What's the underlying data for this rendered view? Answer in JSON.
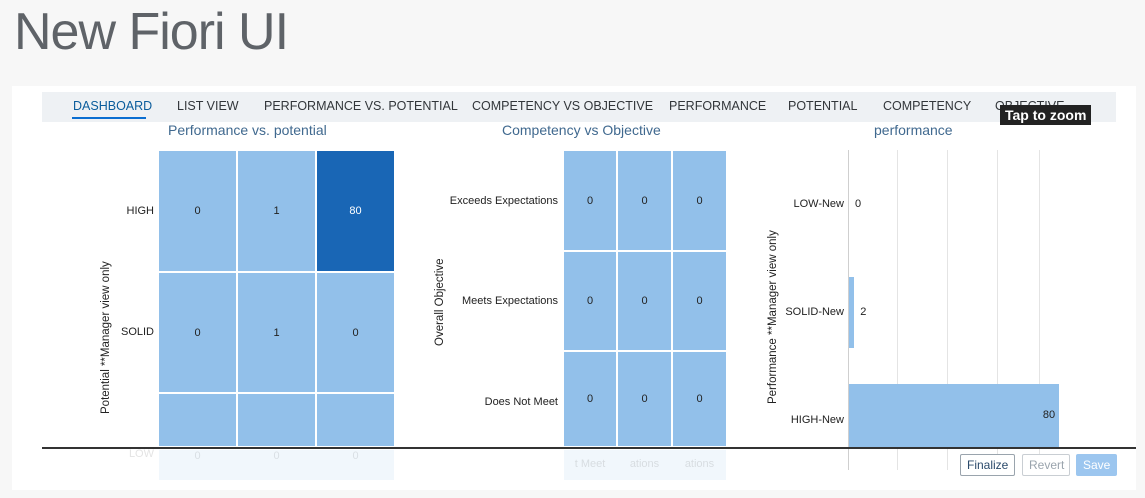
{
  "page": {
    "title": "New Fiori UI"
  },
  "tabs": [
    {
      "label": "DASHBOARD",
      "active": true
    },
    {
      "label": "LIST VIEW"
    },
    {
      "label": "PERFORMANCE VS. POTENTIAL"
    },
    {
      "label": "COMPETENCY VS OBJECTIVE"
    },
    {
      "label": "PERFORMANCE"
    },
    {
      "label": "POTENTIAL"
    },
    {
      "label": "COMPETENCY"
    },
    {
      "label": "OBJECTIVE"
    }
  ],
  "zoom_hint": "Tap to zoom",
  "charts": {
    "perf_potential": {
      "title": "Performance vs. potential",
      "ylabel": "Potential **Manager view only",
      "rows": [
        {
          "label": "HIGH",
          "values": [
            "0",
            "1",
            "80"
          ]
        },
        {
          "label": "SOLID",
          "values": [
            "0",
            "1",
            "0"
          ]
        },
        {
          "label": "LOW",
          "values": [
            "0",
            "0",
            "0"
          ]
        }
      ]
    },
    "comp_obj": {
      "title": "Competency vs Objective",
      "ylabel": "Overall Objective",
      "rows": [
        {
          "label": "Exceeds Expectations",
          "values": [
            "0",
            "0",
            "0"
          ]
        },
        {
          "label": "Meets Expectations",
          "values": [
            "0",
            "0",
            "0"
          ]
        },
        {
          "label": "Does Not Meet",
          "values": [
            "0",
            "0",
            "0"
          ]
        }
      ],
      "xticks": [
        "t Meet",
        "ations",
        "ations"
      ]
    },
    "performance": {
      "title": "performance",
      "ylabel": "Performance **Manager view only",
      "bars": [
        {
          "label": "LOW-New",
          "value": "0"
        },
        {
          "label": "SOLID-New",
          "value": "2"
        },
        {
          "label": "HIGH-New",
          "value": "80"
        }
      ]
    }
  },
  "chart_data": [
    {
      "type": "heatmap",
      "title": "Performance vs. potential",
      "ylabel": "Potential **Manager view only",
      "rows": [
        "HIGH",
        "SOLID",
        "LOW"
      ],
      "values": [
        [
          0,
          1,
          80
        ],
        [
          0,
          1,
          0
        ],
        [
          0,
          0,
          0
        ]
      ]
    },
    {
      "type": "heatmap",
      "title": "Competency vs Objective",
      "ylabel": "Overall Objective",
      "rows": [
        "Exceeds Expectations",
        "Meets Expectations",
        "Does Not Meet"
      ],
      "values": [
        [
          0,
          0,
          0
        ],
        [
          0,
          0,
          0
        ],
        [
          0,
          0,
          0
        ]
      ]
    },
    {
      "type": "bar",
      "orientation": "horizontal",
      "title": "performance",
      "ylabel": "Performance **Manager view only",
      "categories": [
        "LOW-New",
        "SOLID-New",
        "HIGH-New"
      ],
      "values": [
        0,
        2,
        80
      ],
      "xlim": [
        0,
        85
      ],
      "grid": true
    }
  ],
  "colors": {
    "cell": "#92c0ea",
    "cell_max": "#1966b5",
    "accent": "#0a6ed1"
  },
  "actions": {
    "finalize": "Finalize",
    "revert": "Revert",
    "save": "Save"
  }
}
